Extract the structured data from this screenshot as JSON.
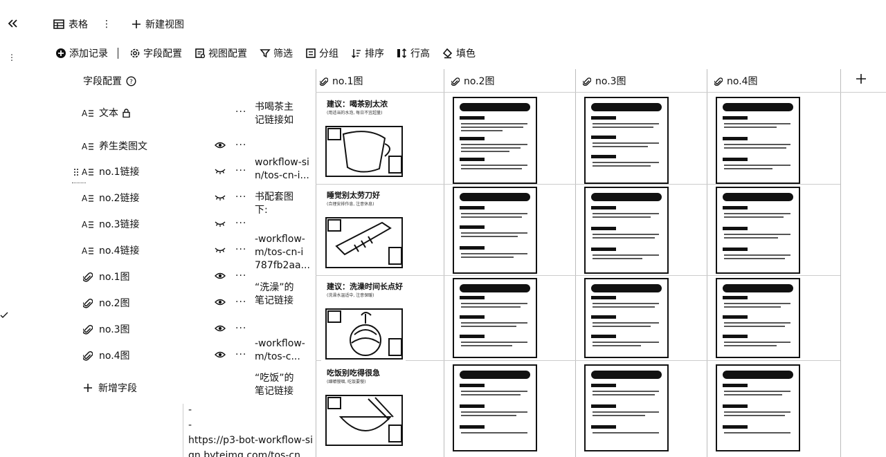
{
  "topbar": {
    "collapse_icon": "double-chevron-left-icon",
    "view_name": "表格",
    "new_view": "新建视图"
  },
  "toolbar": {
    "add_record": "添加记录",
    "field_config": "字段配置",
    "view_config": "视图配置",
    "filter": "筛选",
    "group": "分组",
    "sort": "排序",
    "row_height": "行高",
    "fill_color": "填色"
  },
  "field_panel": {
    "title": "字段配置",
    "fields": [
      {
        "label": "文本",
        "type_icon": "text-field-icon",
        "state": "locked"
      },
      {
        "label": "养生类图文",
        "type_icon": "text-field-icon",
        "state": "visible"
      },
      {
        "label": "no.1链接",
        "type_icon": "text-field-icon",
        "state": "hidden"
      },
      {
        "label": "no.2链接",
        "type_icon": "text-field-icon",
        "state": "hidden"
      },
      {
        "label": "no.3链接",
        "type_icon": "text-field-icon",
        "state": "hidden"
      },
      {
        "label": "no.4链接",
        "type_icon": "text-field-icon",
        "state": "hidden"
      },
      {
        "label": "no.1图",
        "type_icon": "attachment-icon",
        "state": "visible"
      },
      {
        "label": "no.2图",
        "type_icon": "attachment-icon",
        "state": "visible"
      },
      {
        "label": "no.3图",
        "type_icon": "attachment-icon",
        "state": "visible"
      },
      {
        "label": "no.4图",
        "type_icon": "attachment-icon",
        "state": "visible"
      }
    ],
    "add_field": "新增字段"
  },
  "text_column_peek": [
    [
      "书喝茶主",
      "记链接如"
    ],
    [
      "workflow-si",
      "n/tos-cn-i..."
    ],
    [
      "书配套图",
      "下:"
    ],
    [
      "-workflow-",
      "m/tos-cn-i",
      "787fb2aa..."
    ],
    [
      "“洗澡”的",
      "笔记链接"
    ],
    [
      "-workflow-",
      "m/tos-c..."
    ],
    [
      "“吃饭”的",
      "笔记链接"
    ]
  ],
  "bottom_text": [
    "-",
    "-",
    "https://p3-bot-workflow-si",
    "gn.byteimg.com/tos-cn-i..."
  ],
  "grid": {
    "columns": [
      "no.1图",
      "no.2图",
      "no.3图",
      "no.4图"
    ],
    "add_column": "+",
    "illustration_rows": [
      {
        "title": "建议：喝茶别太浓",
        "subtitle": "(用适当的水泡, 每日不宜超量)"
      },
      {
        "title": "睡觉别太劳刀好",
        "subtitle": "(合理安排作息, 注意休息)"
      },
      {
        "title": "建议：洗澡时间长点好",
        "subtitle": "(洗澡水温适中, 注意保暖)"
      },
      {
        "title": "吃饭别吃得很急",
        "subtitle": "(细嚼慢咽, 吃饭要慢)"
      }
    ]
  }
}
